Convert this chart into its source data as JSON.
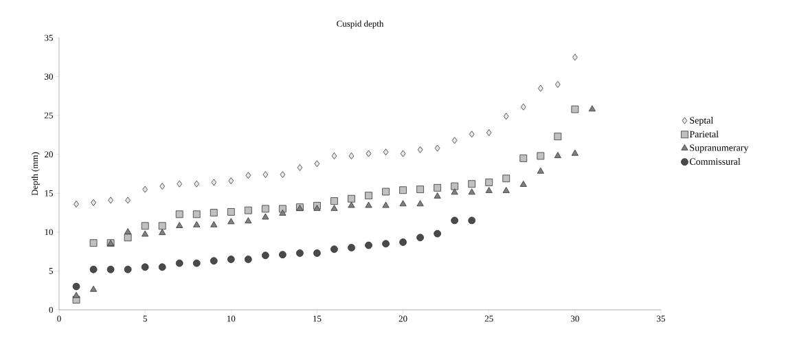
{
  "chart_data": {
    "type": "scatter",
    "title": "Cuspid depth",
    "ylabel": "Depth (mm)",
    "xlim": [
      0,
      35
    ],
    "xticks": [
      0,
      5,
      10,
      15,
      20,
      25,
      30,
      35
    ],
    "ylim": [
      0,
      35
    ],
    "yticks": [
      0,
      5,
      10,
      15,
      20,
      25,
      30,
      35
    ],
    "grid": false,
    "legend": "right",
    "series": [
      {
        "name": "Septal",
        "color": "#e8e8e8",
        "marker": "diamond",
        "x": [
          1,
          2,
          3,
          4,
          5,
          6,
          7,
          8,
          9,
          10,
          11,
          12,
          13,
          14,
          15,
          16,
          17,
          18,
          19,
          20,
          21,
          22,
          23,
          24,
          25,
          26,
          27,
          28,
          29,
          30
        ],
        "values": [
          13.6,
          13.8,
          14.1,
          14.1,
          15.5,
          15.9,
          16.2,
          16.2,
          16.4,
          16.6,
          17.3,
          17.4,
          17.4,
          18.3,
          18.8,
          19.8,
          19.8,
          20.1,
          20.3,
          20.1,
          20.6,
          20.8,
          21.8,
          22.6,
          22.8,
          24.9,
          26.1,
          28.5,
          29.0,
          32.5
        ]
      },
      {
        "name": "Parietal",
        "color": "#c0c0c4",
        "marker": "square",
        "x": [
          1,
          2,
          3,
          4,
          5,
          6,
          7,
          8,
          9,
          10,
          11,
          12,
          13,
          14,
          15,
          16,
          17,
          18,
          19,
          20,
          21,
          22,
          23,
          24,
          25,
          26,
          27,
          28,
          29,
          30
        ],
        "values": [
          1.3,
          8.6,
          8.6,
          9.3,
          10.8,
          10.8,
          12.3,
          12.3,
          12.5,
          12.6,
          12.8,
          13.0,
          13.0,
          13.2,
          13.4,
          14.0,
          14.3,
          14.7,
          15.2,
          15.4,
          15.5,
          15.7,
          15.9,
          16.2,
          16.4,
          16.9,
          19.5,
          19.8,
          22.3,
          25.8
        ]
      },
      {
        "name": "Supranumerary",
        "color": "#7f7f7f",
        "marker": "triangle",
        "x": [
          1,
          2,
          3,
          4,
          5,
          6,
          7,
          8,
          9,
          10,
          11,
          12,
          13,
          14,
          15,
          16,
          17,
          18,
          19,
          20,
          21,
          22,
          23,
          24,
          25,
          26,
          27,
          28,
          29,
          30,
          31
        ],
        "values": [
          1.8,
          2.6,
          8.5,
          10.0,
          9.7,
          9.9,
          10.8,
          10.9,
          10.9,
          11.3,
          11.4,
          11.9,
          12.4,
          13.0,
          13.0,
          13.0,
          13.4,
          13.4,
          13.4,
          13.6,
          13.6,
          14.6,
          15.1,
          15.1,
          15.3,
          15.3,
          16.1,
          17.8,
          19.8,
          20.1,
          25.8
        ]
      },
      {
        "name": "Commissural",
        "color": "#4a4a4a",
        "marker": "circle",
        "x": [
          1,
          2,
          3,
          4,
          5,
          6,
          7,
          8,
          9,
          10,
          11,
          12,
          13,
          14,
          15,
          16,
          17,
          18,
          19,
          20,
          21,
          22,
          23,
          24
        ],
        "values": [
          3.0,
          5.2,
          5.2,
          5.2,
          5.5,
          5.5,
          6.0,
          6.0,
          6.3,
          6.5,
          6.5,
          7.0,
          7.1,
          7.3,
          7.3,
          7.8,
          8.0,
          8.3,
          8.5,
          8.7,
          9.3,
          9.8,
          11.5,
          11.5
        ]
      }
    ]
  }
}
